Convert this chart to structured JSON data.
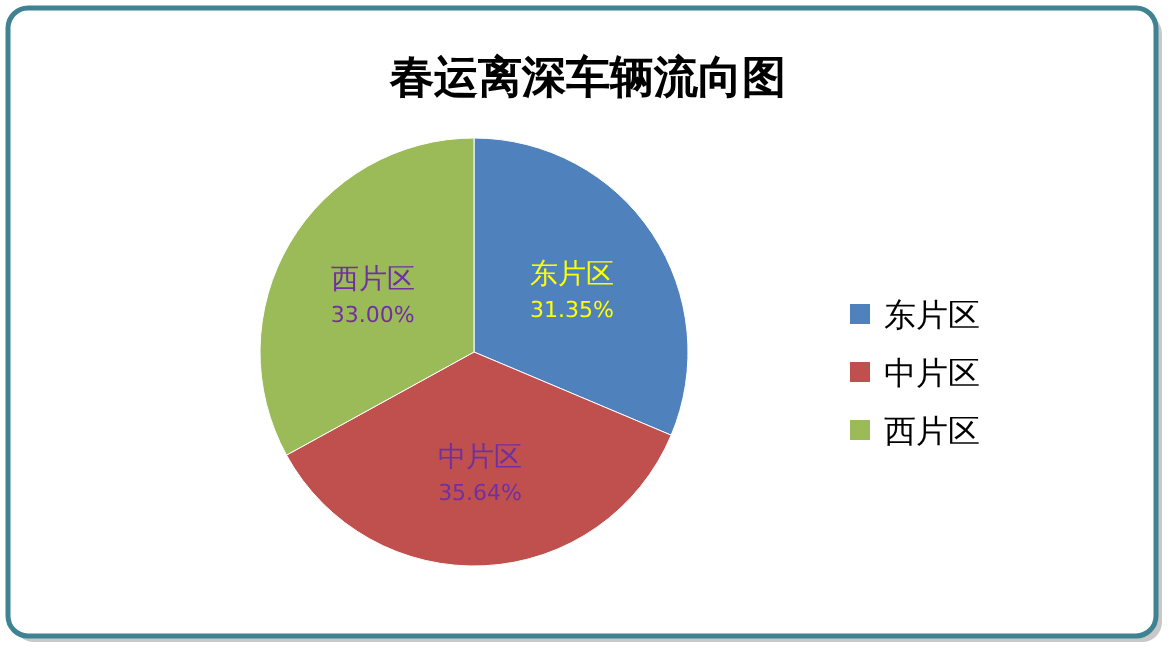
{
  "chart_data": {
    "type": "pie",
    "title": "春运离深车辆流向图",
    "categories": [
      "东片区",
      "中片区",
      "西片区"
    ],
    "values": [
      31.35,
      35.64,
      33.0
    ],
    "value_labels": [
      "31.35%",
      "35.64%",
      "33.00%"
    ],
    "colors": [
      "#4f81bd",
      "#c0504d",
      "#9bbb59"
    ],
    "legend": "right"
  }
}
